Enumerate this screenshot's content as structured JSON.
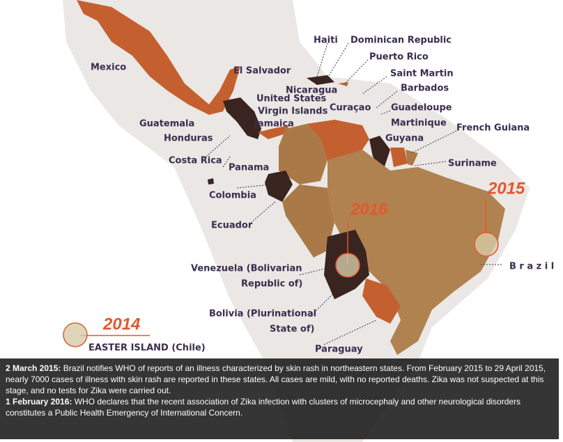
{
  "labels": [
    "Mexico",
    "El Salvador",
    "Haiti",
    "Dominican Republic",
    "Puerto Rico",
    "Saint Martin",
    "Barbados",
    "Nicaragua",
    "United States",
    "Virgin Islands",
    "Curaçao",
    "Guadeloupe",
    "Martinique",
    "Guatemala",
    "Jamaica",
    "French Guiana",
    "Honduras",
    "Guyana",
    "Costa Rica",
    "Suriname",
    "Panama",
    "Colombia",
    "Ecuador",
    "Venezuela (Bolivarian",
    "Republic of)",
    "Bolivia (Plurinational",
    "State of)",
    "Paraguay",
    "B r a z i l",
    "EASTER ISLAND (Chile)"
  ],
  "years": [
    "2015",
    "2016",
    "2014"
  ],
  "caption": [
    {
      "date": "2 March 2015:",
      "text": "Brazil notifies WHO of reports of an illness characterized by skin rash in northeastern states. From February 2015 to 29 April 2015, nearly 7000 cases of illness with skin rash are reported in these states. All cases are mild, with no reported deaths. Zika was not suspected at this stage, and no tests for Zika were carried out."
    },
    {
      "date": "1 February 2016:",
      "text": "WHO declares that the recent association of Zika infection with clusters of microcephaly and other neurological disorders constitutes a Public Health Emergency of International Concern."
    }
  ]
}
